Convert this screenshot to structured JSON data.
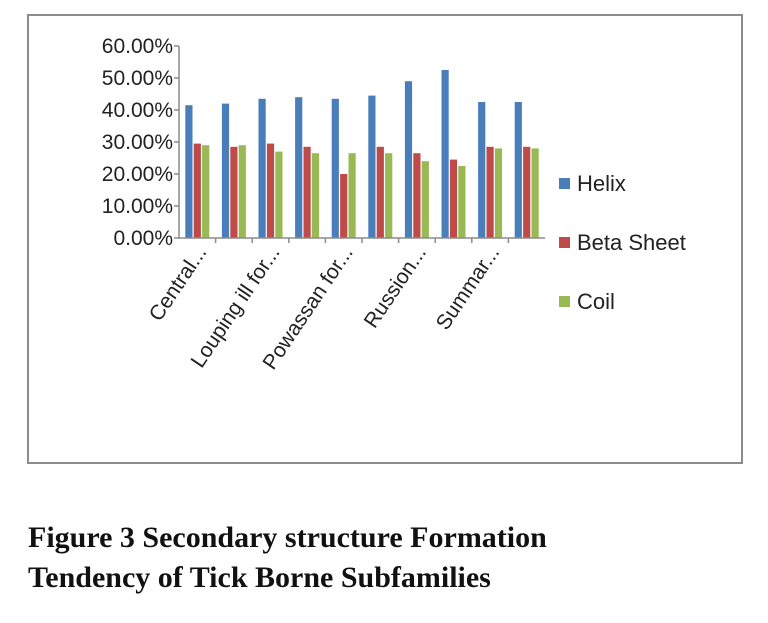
{
  "chart_data": {
    "type": "bar",
    "categories": [
      "Central...",
      "",
      "Louping ill for...",
      "",
      "Powassan  for...",
      "",
      "Russion...",
      "",
      "Summar...",
      ""
    ],
    "series": [
      {
        "name": "Helix",
        "values": [
          41.5,
          42,
          43.5,
          44,
          43.5,
          44.5,
          49,
          52.5,
          42.5,
          42.5
        ]
      },
      {
        "name": "Beta Sheet",
        "values": [
          29.5,
          28.5,
          29.5,
          28.5,
          20,
          28.5,
          26.5,
          24.5,
          28.5,
          28.5
        ]
      },
      {
        "name": "Coil",
        "values": [
          29,
          29,
          27,
          26.5,
          26.5,
          26.5,
          24,
          22.5,
          28,
          28
        ]
      }
    ],
    "colors": [
      "#4a7ebb",
      "#be4b48",
      "#98b954"
    ],
    "yticks": [
      "0.00%",
      "10.00%",
      "20.00%",
      "30.00%",
      "40.00%",
      "50.00%",
      "60.00%"
    ],
    "ylim": [
      0,
      60
    ],
    "legend_position": "right",
    "grid": false
  },
  "caption": {
    "line1": "Figure 3 Secondary structure Formation",
    "line2": "Tendency of Tick Borne Subfamilies"
  }
}
